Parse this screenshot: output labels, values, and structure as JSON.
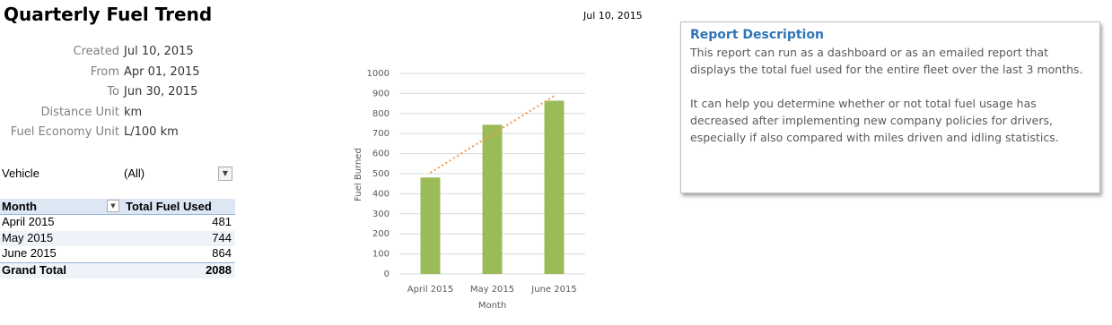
{
  "header": {
    "title": "Quarterly Fuel Trend",
    "date": "Jul 10, 2015"
  },
  "meta": [
    {
      "label": "Created",
      "value": "Jul 10, 2015"
    },
    {
      "label": "From",
      "value": "Apr 01, 2015"
    },
    {
      "label": "To",
      "value": "Jun 30, 2015"
    },
    {
      "label": "Distance Unit",
      "value": "km"
    },
    {
      "label": "Fuel Economy Unit",
      "value": "L/100 km"
    }
  ],
  "filter": {
    "label": "Vehicle",
    "value": "(All)"
  },
  "table": {
    "columns": [
      "Month",
      "Total Fuel Used"
    ],
    "rows": [
      [
        "April 2015",
        481
      ],
      [
        "May 2015",
        744
      ],
      [
        "June 2015",
        864
      ]
    ],
    "total": [
      "Grand Total",
      2088
    ]
  },
  "chart_data": {
    "type": "bar",
    "categories": [
      "April 2015",
      "May 2015",
      "June 2015"
    ],
    "values": [
      481,
      744,
      864
    ],
    "color": "#9bbb59",
    "ylim": [
      0,
      1000
    ],
    "yticks": [
      0,
      100,
      200,
      300,
      400,
      500,
      600,
      700,
      800,
      900,
      1000
    ],
    "grid": true,
    "xlabel": "Month",
    "ylabel": "Fuel Burned",
    "trendline": {
      "kind": "linear",
      "color": "#f79646"
    }
  },
  "description": {
    "heading": "Report Description",
    "paragraphs": [
      "This report can run as a dashboard or as an emailed report that displays the total fuel used for the entire fleet over the last 3 months.",
      "It can help you determine whether or not total fuel usage has decreased after implementing new company policies for drivers, especially if also compared with miles driven and idling statistics."
    ]
  }
}
